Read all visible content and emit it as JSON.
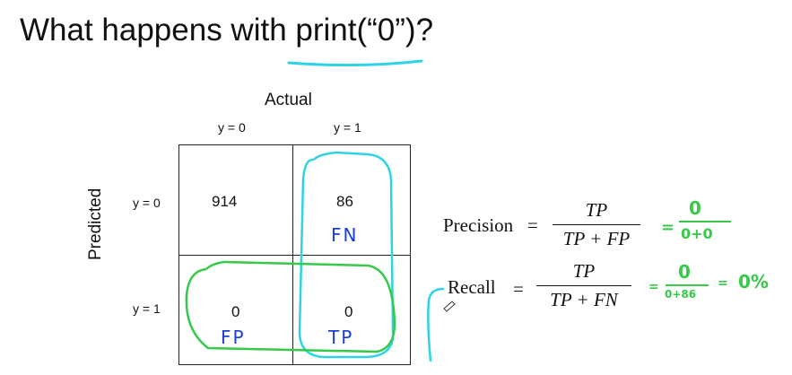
{
  "title": "What happens with print(“0”)?",
  "matrix": {
    "actual_label": "Actual",
    "predicted_label": "Predicted",
    "col_headers": [
      "y = 0",
      "y = 1"
    ],
    "row_headers": [
      "y = 0",
      "y = 1"
    ],
    "cells": {
      "r0c0": "914",
      "r0c1": "86",
      "r1c0": "0",
      "r1c1": "0"
    }
  },
  "annotations": {
    "fn": "FN",
    "fp": "FP",
    "tp": "TP"
  },
  "precision": {
    "label": "Precision",
    "equals": "=",
    "numerator": "TP",
    "denominator": "TP + FP",
    "hand_eq": "=",
    "hand_num": "0",
    "hand_den": "0+0"
  },
  "recall": {
    "label": "Recall",
    "equals": "=",
    "numerator": "TP",
    "denominator": "TP + FN",
    "hand_eq": "=",
    "hand_num": "0",
    "hand_den": "0+86",
    "hand_eq2": "=",
    "hand_result": "0%"
  },
  "colors": {
    "blue_ink": "#1a3fd8",
    "cyan_ink": "#2fd3e6",
    "green_ink": "#36c94a"
  }
}
